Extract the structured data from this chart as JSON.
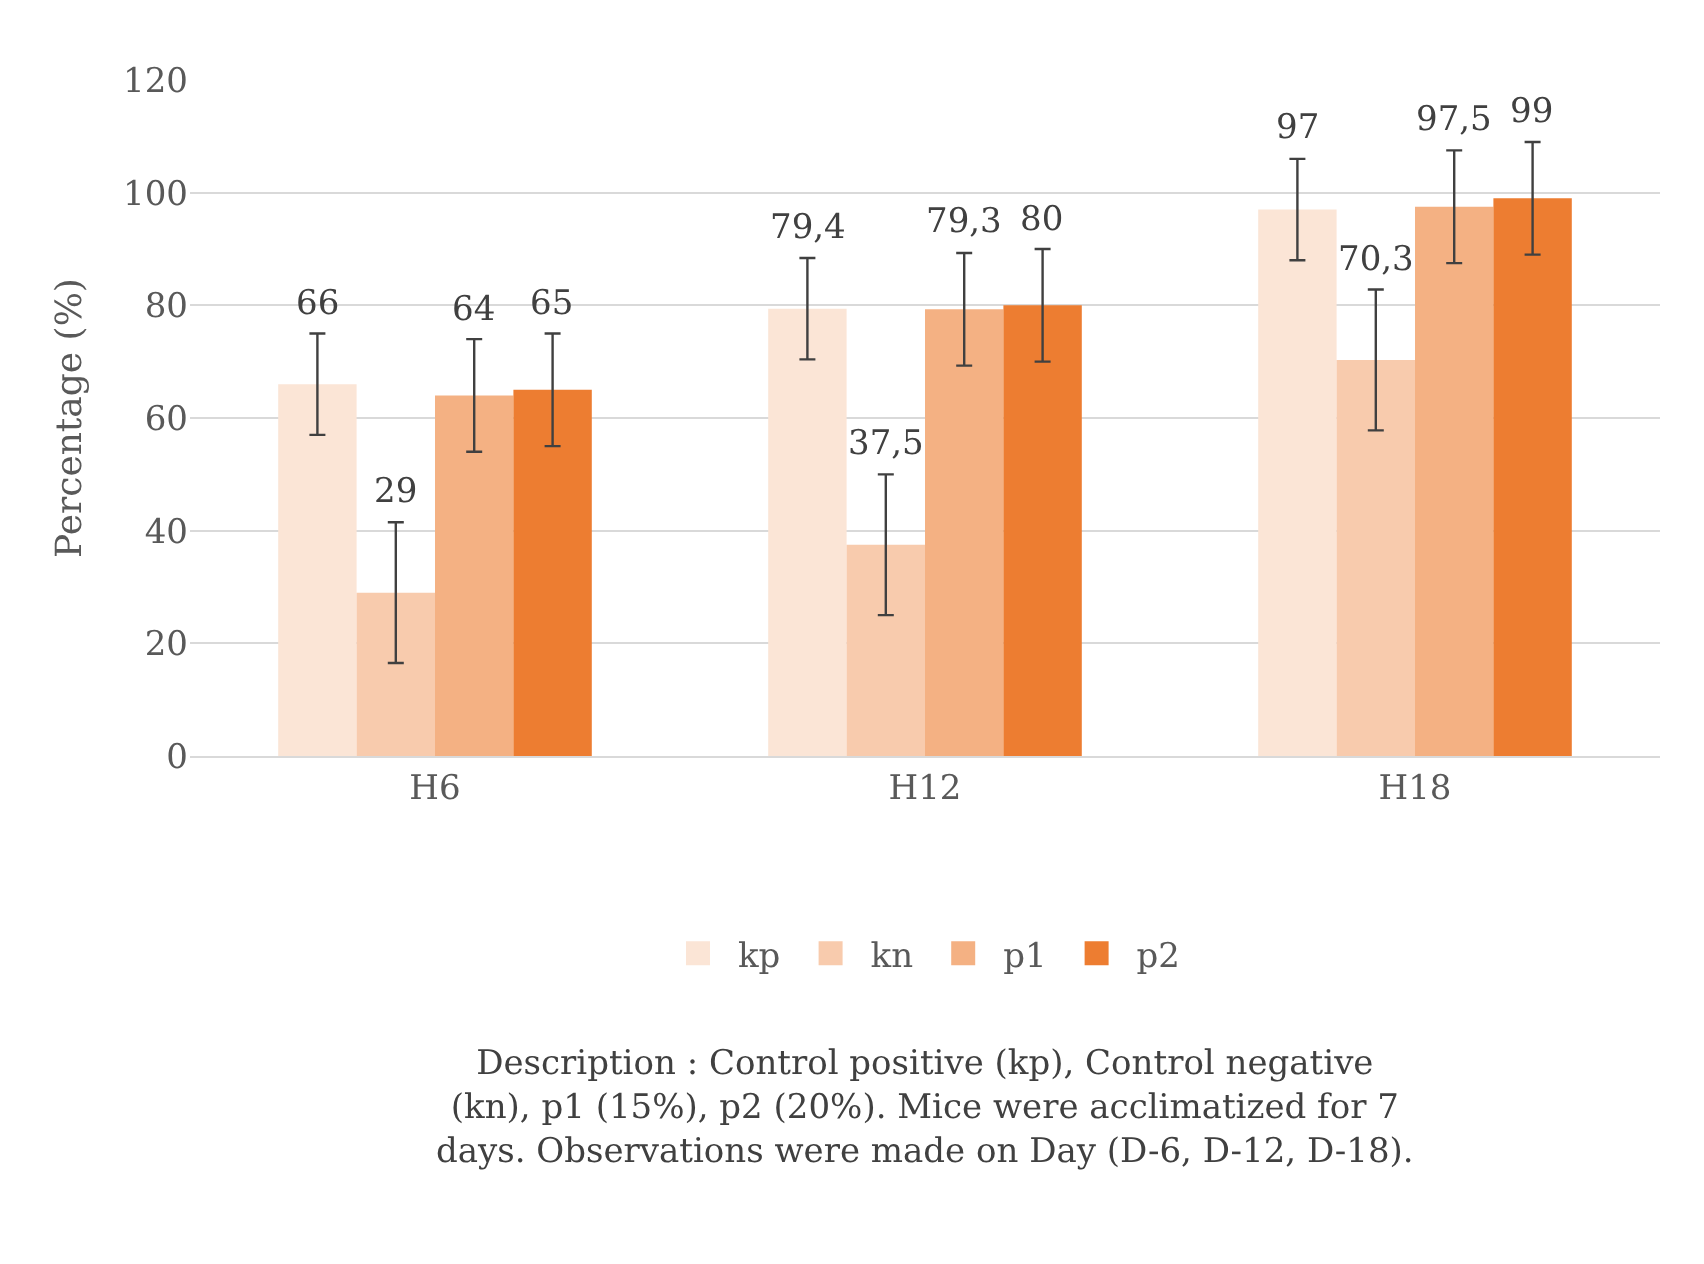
{
  "chart_data": {
    "type": "bar",
    "ylabel": "Percentage (%)",
    "categories": [
      "H6",
      "H12",
      "H18"
    ],
    "series": [
      {
        "name": "kp",
        "color": "#fbe5d6",
        "values": [
          66,
          79.4,
          97
        ],
        "errors": [
          9,
          9,
          9
        ],
        "value_labels": [
          "66",
          "79,4",
          "97"
        ]
      },
      {
        "name": "kn",
        "color": "#f8cbad",
        "values": [
          29,
          37.5,
          70.3
        ],
        "errors": [
          12.5,
          12.5,
          12.5
        ],
        "value_labels": [
          "29",
          "37,5",
          "70,3"
        ]
      },
      {
        "name": "p1",
        "color": "#f4b183",
        "values": [
          64,
          79.3,
          97.5
        ],
        "errors": [
          10,
          10,
          10
        ],
        "value_labels": [
          "64",
          "79,3",
          "97,5"
        ]
      },
      {
        "name": "p2",
        "color": "#ed7d31",
        "values": [
          65,
          80,
          99
        ],
        "errors": [
          10,
          10,
          10
        ],
        "value_labels": [
          "65",
          "80",
          "99"
        ]
      }
    ],
    "ylim": [
      0,
      120
    ],
    "yticks": [
      0,
      20,
      40,
      60,
      80,
      100,
      120
    ],
    "grid": "y",
    "legend": "bottom",
    "annotations": [
      "Description : Control positive (kp), Control negative (kn), p1 (15%), p2 (20%). Mice were acclimatized for 7 days. Observations were made on Day (D-6, D-12, D-18)."
    ]
  }
}
